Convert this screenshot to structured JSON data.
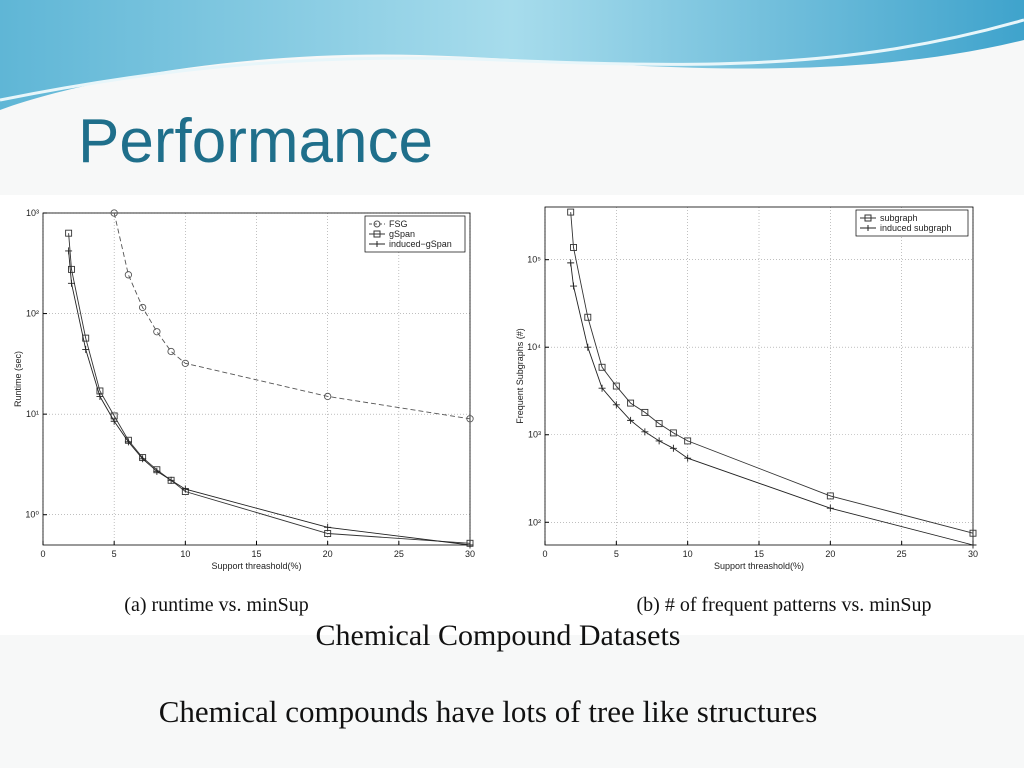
{
  "slide": {
    "title": "Performance",
    "subtitle": "Chemical Compound Datasets",
    "note": "Chemical compounds have lots of tree like structures"
  },
  "chart_data": [
    {
      "type": "line",
      "caption": "(a) runtime vs. minSup",
      "x_label": "Support threashold(%)",
      "y_label": "Runtime (sec)",
      "x": [
        1.8,
        2,
        3,
        4,
        5,
        6,
        7,
        8,
        9,
        10,
        20,
        30
      ],
      "series": [
        {
          "name": "FSG",
          "color": "#555555",
          "marker": "circle",
          "dash": "dashed",
          "values": [
            null,
            null,
            null,
            null,
            1000,
            243,
            115,
            66,
            42,
            32,
            15,
            9
          ]
        },
        {
          "name": "gSpan",
          "color": "#333333",
          "marker": "square",
          "dash": "solid",
          "values": [
            630,
            275,
            57,
            17,
            9.6,
            5.5,
            3.7,
            2.8,
            2.2,
            1.7,
            0.65,
            0.52
          ]
        },
        {
          "name": "induced−gSpan",
          "color": "#222222",
          "marker": "plus",
          "dash": "solid",
          "values": [
            420,
            200,
            44,
            15,
            8.5,
            5.3,
            3.6,
            2.7,
            2.2,
            1.8,
            0.75,
            0.5
          ]
        }
      ],
      "xlim": [
        0,
        30
      ],
      "xticks": [
        0,
        5,
        10,
        15,
        20,
        25,
        30
      ],
      "ylim": [
        0.5,
        1000
      ],
      "yscale": "log",
      "yticks": [
        {
          "value": 1,
          "label": "10⁰"
        },
        {
          "value": 10,
          "label": "10¹"
        },
        {
          "value": 100,
          "label": "10²"
        },
        {
          "value": 1000,
          "label": "10³"
        }
      ],
      "grid": true,
      "legend": "upper right"
    },
    {
      "type": "line",
      "caption": "(b) # of frequent patterns vs. minSup",
      "x_label": "Support threashold(%)",
      "y_label": "Frequent Subgraphs (#)",
      "x": [
        1.8,
        2,
        3,
        4,
        5,
        6,
        7,
        8,
        9,
        10,
        20,
        30
      ],
      "series": [
        {
          "name": "subgraph",
          "color": "#333333",
          "marker": "square",
          "dash": "solid",
          "values": [
            350000,
            138000,
            22000,
            5900,
            3600,
            2300,
            1800,
            1340,
            1050,
            850,
            200,
            75
          ]
        },
        {
          "name": "induced subgraph",
          "color": "#222222",
          "marker": "plus",
          "dash": "solid",
          "values": [
            92000,
            50000,
            10000,
            3400,
            2200,
            1460,
            1080,
            850,
            700,
            540,
            145,
            55
          ]
        }
      ],
      "xlim": [
        0,
        30
      ],
      "xticks": [
        0,
        5,
        10,
        15,
        20,
        25,
        30
      ],
      "ylim": [
        55,
        400000
      ],
      "yscale": "log",
      "yticks": [
        {
          "value": 100,
          "label": "10²"
        },
        {
          "value": 1000,
          "label": "10³"
        },
        {
          "value": 10000,
          "label": "10⁴"
        },
        {
          "value": 100000,
          "label": "10⁵"
        }
      ],
      "grid": true,
      "legend": "upper right"
    }
  ]
}
